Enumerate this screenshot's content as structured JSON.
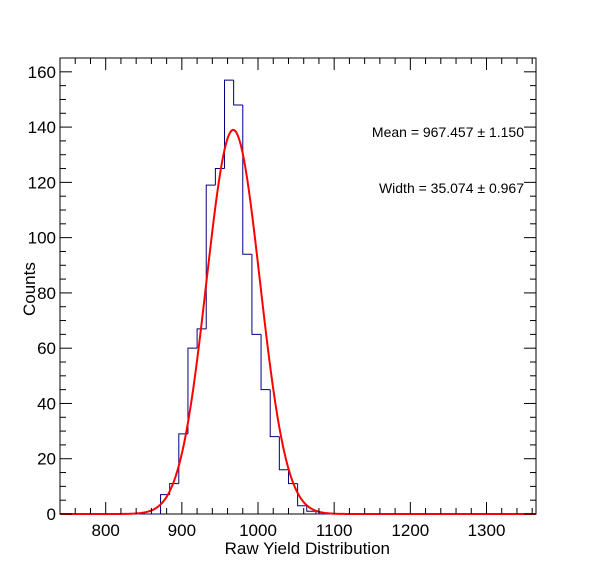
{
  "chart_data": {
    "type": "histogram",
    "xlabel": "Raw Yield Distribution",
    "ylabel": "Counts",
    "xlim": [
      740,
      1365
    ],
    "ylim": [
      0,
      165
    ],
    "x_ticks": [
      800,
      900,
      1000,
      1100,
      1200,
      1300
    ],
    "y_ticks": [
      0,
      20,
      40,
      60,
      80,
      100,
      120,
      140,
      160
    ],
    "x_tick_labels": [
      "800",
      "900",
      "1000",
      "1100",
      "1200",
      "1300"
    ],
    "y_tick_labels": [
      "0",
      "20",
      "40",
      "60",
      "80",
      "100",
      "120",
      "140",
      "160"
    ],
    "grid": false,
    "histogram": {
      "color": "#000080",
      "bin_edges": [
        740,
        872,
        884,
        896,
        908,
        920,
        932,
        944,
        956,
        968,
        980,
        992,
        1004,
        1016,
        1028,
        1040,
        1052,
        1064,
        1076,
        1365
      ],
      "counts": [
        0,
        7,
        11,
        29,
        60,
        67,
        119,
        125,
        157,
        148,
        94,
        65,
        45,
        28,
        16,
        11,
        3,
        1,
        0
      ]
    },
    "fit": {
      "function": "gaussian",
      "color": "#ff0000",
      "amplitude": 139,
      "mean": 967.457,
      "sigma": 35.074
    },
    "annotations": [
      {
        "label": "Mean = 967.457 ± 1.150"
      },
      {
        "label": "Width = 35.074 ± 0.967"
      }
    ]
  }
}
